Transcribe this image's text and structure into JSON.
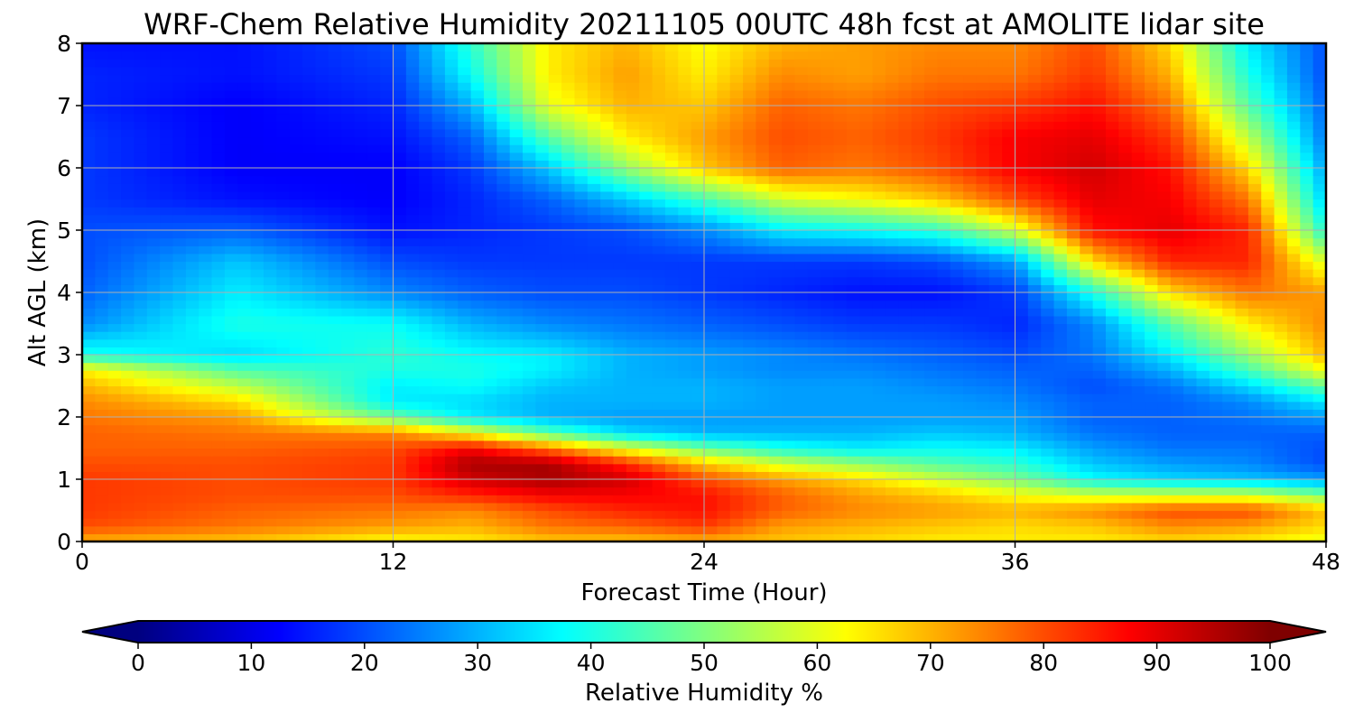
{
  "chart_data": {
    "type": "heatmap",
    "title": "WRF-Chem Relative Humidity 20211105 00UTC 48h fcst at AMOLITE lidar site",
    "xlabel": "Forecast Time (Hour)",
    "ylabel": "Alt AGL (km)",
    "xlim": [
      0,
      48
    ],
    "ylim": [
      0,
      8
    ],
    "xticks": [
      "0",
      "12",
      "24",
      "36",
      "48"
    ],
    "yticks": [
      "0",
      "1",
      "2",
      "3",
      "4",
      "5",
      "6",
      "7",
      "8"
    ],
    "grid": true,
    "colormap": "jet",
    "colorbar": {
      "label": "Relative Humidity %",
      "range": [
        0,
        100
      ],
      "ticks": [
        "0",
        "10",
        "20",
        "30",
        "40",
        "50",
        "60",
        "70",
        "80",
        "90",
        "100"
      ],
      "extend": "both"
    },
    "x": [
      0,
      6,
      12,
      15,
      18,
      21,
      24,
      27,
      30,
      33,
      36,
      39,
      42,
      45,
      48
    ],
    "y": [
      0,
      0.25,
      0.5,
      0.75,
      1,
      1.25,
      1.5,
      1.75,
      2,
      2.25,
      2.5,
      2.75,
      3,
      3.5,
      4,
      4.5,
      5,
      5.5,
      6,
      6.5,
      7,
      7.5,
      8
    ],
    "z": [
      [
        70,
        68,
        62,
        64,
        68,
        68,
        70,
        68,
        66,
        64,
        64,
        64,
        66,
        64,
        60
      ],
      [
        80,
        76,
        72,
        70,
        76,
        78,
        82,
        72,
        70,
        68,
        66,
        68,
        74,
        72,
        66
      ],
      [
        82,
        78,
        76,
        74,
        80,
        84,
        86,
        78,
        74,
        72,
        70,
        74,
        80,
        80,
        68
      ],
      [
        82,
        80,
        80,
        84,
        88,
        88,
        86,
        78,
        72,
        68,
        62,
        58,
        58,
        58,
        50
      ],
      [
        82,
        80,
        82,
        92,
        96,
        92,
        80,
        72,
        66,
        58,
        50,
        38,
        34,
        32,
        28
      ],
      [
        80,
        80,
        82,
        96,
        96,
        84,
        68,
        58,
        52,
        46,
        42,
        32,
        28,
        26,
        20
      ],
      [
        78,
        78,
        80,
        88,
        76,
        60,
        48,
        40,
        36,
        38,
        36,
        28,
        24,
        24,
        20
      ],
      [
        78,
        76,
        74,
        62,
        46,
        34,
        30,
        30,
        30,
        32,
        30,
        24,
        22,
        22,
        22
      ],
      [
        76,
        72,
        48,
        36,
        30,
        28,
        28,
        28,
        28,
        28,
        28,
        22,
        22,
        24,
        28
      ],
      [
        74,
        66,
        36,
        34,
        30,
        30,
        30,
        28,
        28,
        28,
        26,
        22,
        22,
        26,
        36
      ],
      [
        70,
        56,
        36,
        38,
        32,
        30,
        30,
        28,
        28,
        26,
        24,
        20,
        24,
        34,
        48
      ],
      [
        64,
        46,
        40,
        40,
        36,
        30,
        28,
        26,
        26,
        24,
        22,
        22,
        30,
        44,
        62
      ],
      [
        40,
        34,
        42,
        38,
        36,
        30,
        28,
        26,
        24,
        22,
        20,
        24,
        36,
        52,
        70
      ],
      [
        26,
        40,
        38,
        30,
        26,
        24,
        22,
        20,
        18,
        18,
        16,
        26,
        46,
        64,
        74
      ],
      [
        22,
        36,
        26,
        22,
        20,
        20,
        18,
        16,
        14,
        14,
        18,
        40,
        66,
        76,
        72
      ],
      [
        20,
        32,
        20,
        18,
        18,
        18,
        18,
        18,
        18,
        20,
        28,
        66,
        84,
        84,
        58
      ],
      [
        20,
        22,
        14,
        16,
        18,
        20,
        26,
        36,
        38,
        42,
        58,
        86,
        90,
        84,
        40
      ],
      [
        18,
        14,
        12,
        16,
        22,
        32,
        44,
        58,
        62,
        68,
        80,
        90,
        88,
        76,
        32
      ],
      [
        18,
        12,
        12,
        18,
        32,
        52,
        68,
        78,
        76,
        80,
        88,
        92,
        86,
        66,
        28
      ],
      [
        18,
        12,
        14,
        22,
        46,
        64,
        72,
        80,
        78,
        82,
        88,
        90,
        82,
        56,
        24
      ],
      [
        16,
        12,
        16,
        30,
        60,
        70,
        68,
        78,
        76,
        80,
        82,
        86,
        76,
        46,
        22
      ],
      [
        16,
        14,
        18,
        38,
        64,
        72,
        64,
        74,
        72,
        76,
        76,
        82,
        70,
        40,
        20
      ],
      [
        14,
        14,
        20,
        42,
        64,
        70,
        62,
        70,
        72,
        74,
        74,
        80,
        66,
        36,
        20
      ]
    ]
  }
}
